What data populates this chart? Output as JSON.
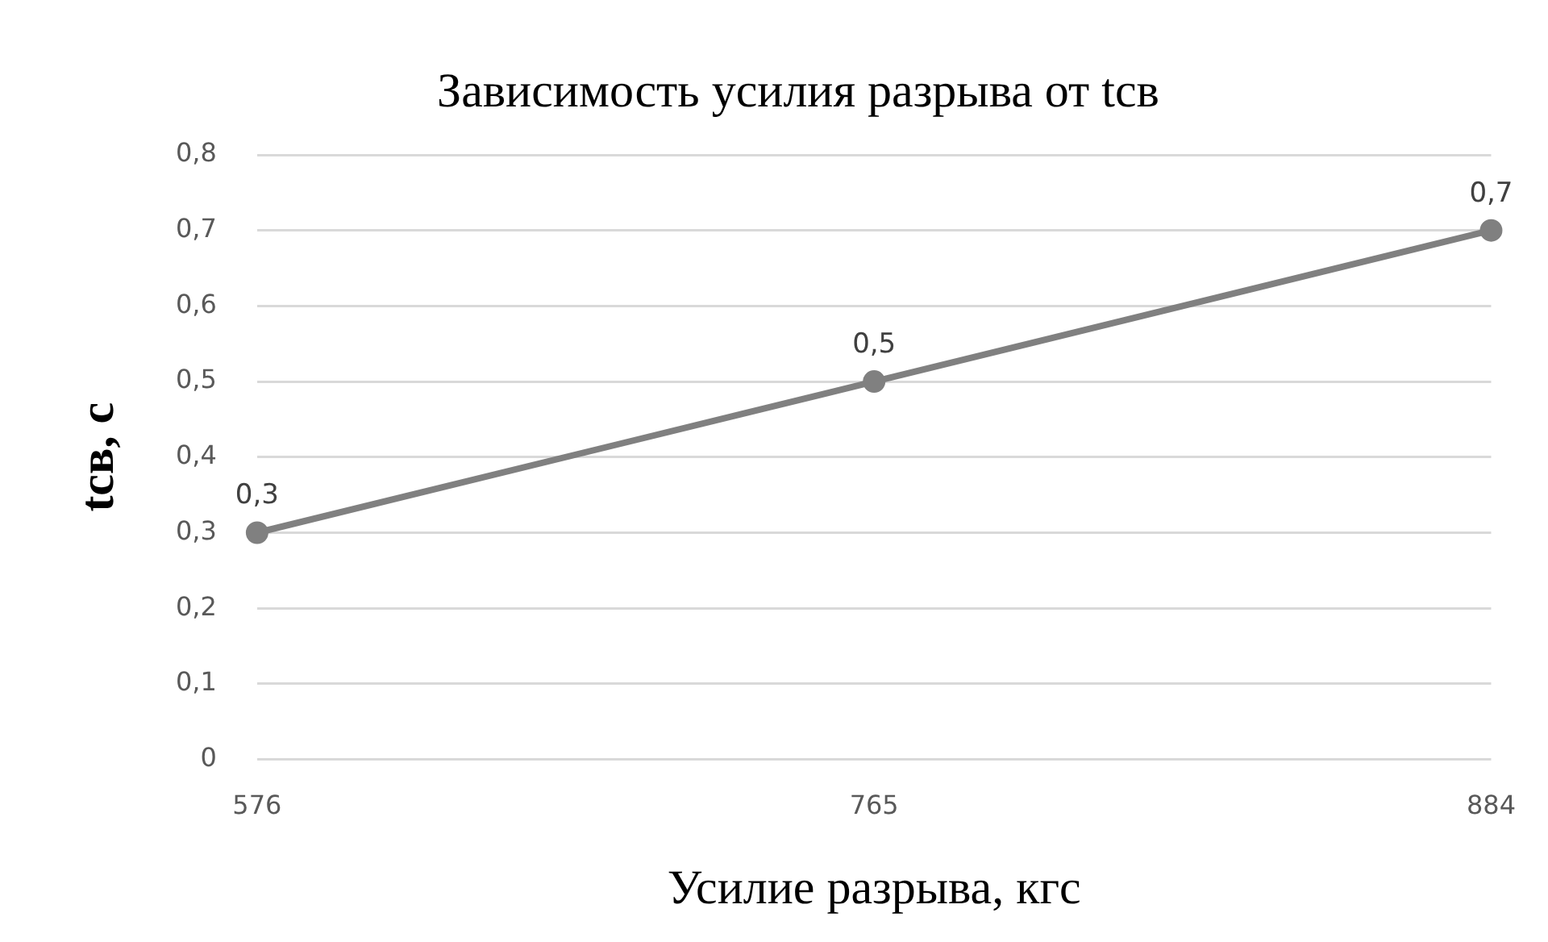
{
  "chart_data": {
    "type": "line",
    "title": "Зависимость усилия разрыва от tсв",
    "xlabel": "Усилие разрыва, кгс",
    "ylabel": "tсв, с",
    "categories": [
      "576",
      "765",
      "884"
    ],
    "series": [
      {
        "color": "#808080",
        "values": [
          0.3,
          0.5,
          0.7
        ],
        "value_labels": [
          "0,3",
          "0,5",
          "0,7"
        ]
      }
    ],
    "ylim": [
      0,
      0.8
    ],
    "yticks": [
      0,
      {
        "value": 0.1,
        "label": "0,1"
      },
      {
        "value": 0.2,
        "label": "0,2"
      },
      {
        "value": 0.3,
        "label": "0,3"
      },
      {
        "value": 0.4,
        "label": "0,4"
      },
      {
        "value": 0.5,
        "label": "0,5"
      },
      {
        "value": 0.6,
        "label": "0,6"
      },
      {
        "value": 0.7,
        "label": "0,7"
      },
      {
        "value": 0.8,
        "label": "0,8"
      }
    ],
    "grid": "y",
    "legend": false,
    "marker": "circle",
    "line_style": "solid"
  }
}
